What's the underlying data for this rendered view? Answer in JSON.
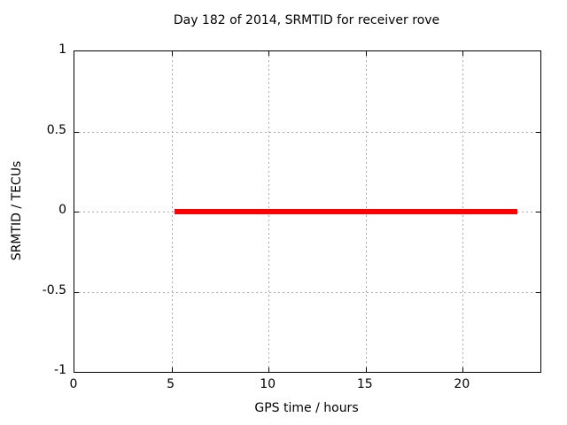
{
  "chart_data": {
    "type": "line",
    "title": "Day 182 of 2014, SRMTID for receiver rove",
    "xlabel": "GPS time / hours",
    "ylabel": "SRMTID / TECUs",
    "xlim": [
      0,
      24
    ],
    "ylim": [
      -1,
      1
    ],
    "grid": true,
    "legend_position": "none",
    "xticks": [
      {
        "label": "0",
        "value": 0
      },
      {
        "label": "5",
        "value": 5
      },
      {
        "label": "10",
        "value": 10
      },
      {
        "label": "15",
        "value": 15
      },
      {
        "label": "20",
        "value": 20
      }
    ],
    "yticks": [
      {
        "label": "1",
        "value": 1
      },
      {
        "label": "0.5",
        "value": 0.5
      },
      {
        "label": "0",
        "value": 0
      },
      {
        "label": "-0.5",
        "value": -0.5
      },
      {
        "label": "-1",
        "value": -1
      }
    ],
    "series": [
      {
        "name": "SRMTID",
        "style": "horizontal-segment",
        "color": "#ff0000",
        "y": 0,
        "x_start": 5.15,
        "x_end": 22.8,
        "thickness_px": 6
      }
    ]
  },
  "colors": {
    "background": "#ffffff",
    "border": "#000000",
    "grid": "#a8a8a8",
    "text": "#000000",
    "series": "#ff0000"
  }
}
